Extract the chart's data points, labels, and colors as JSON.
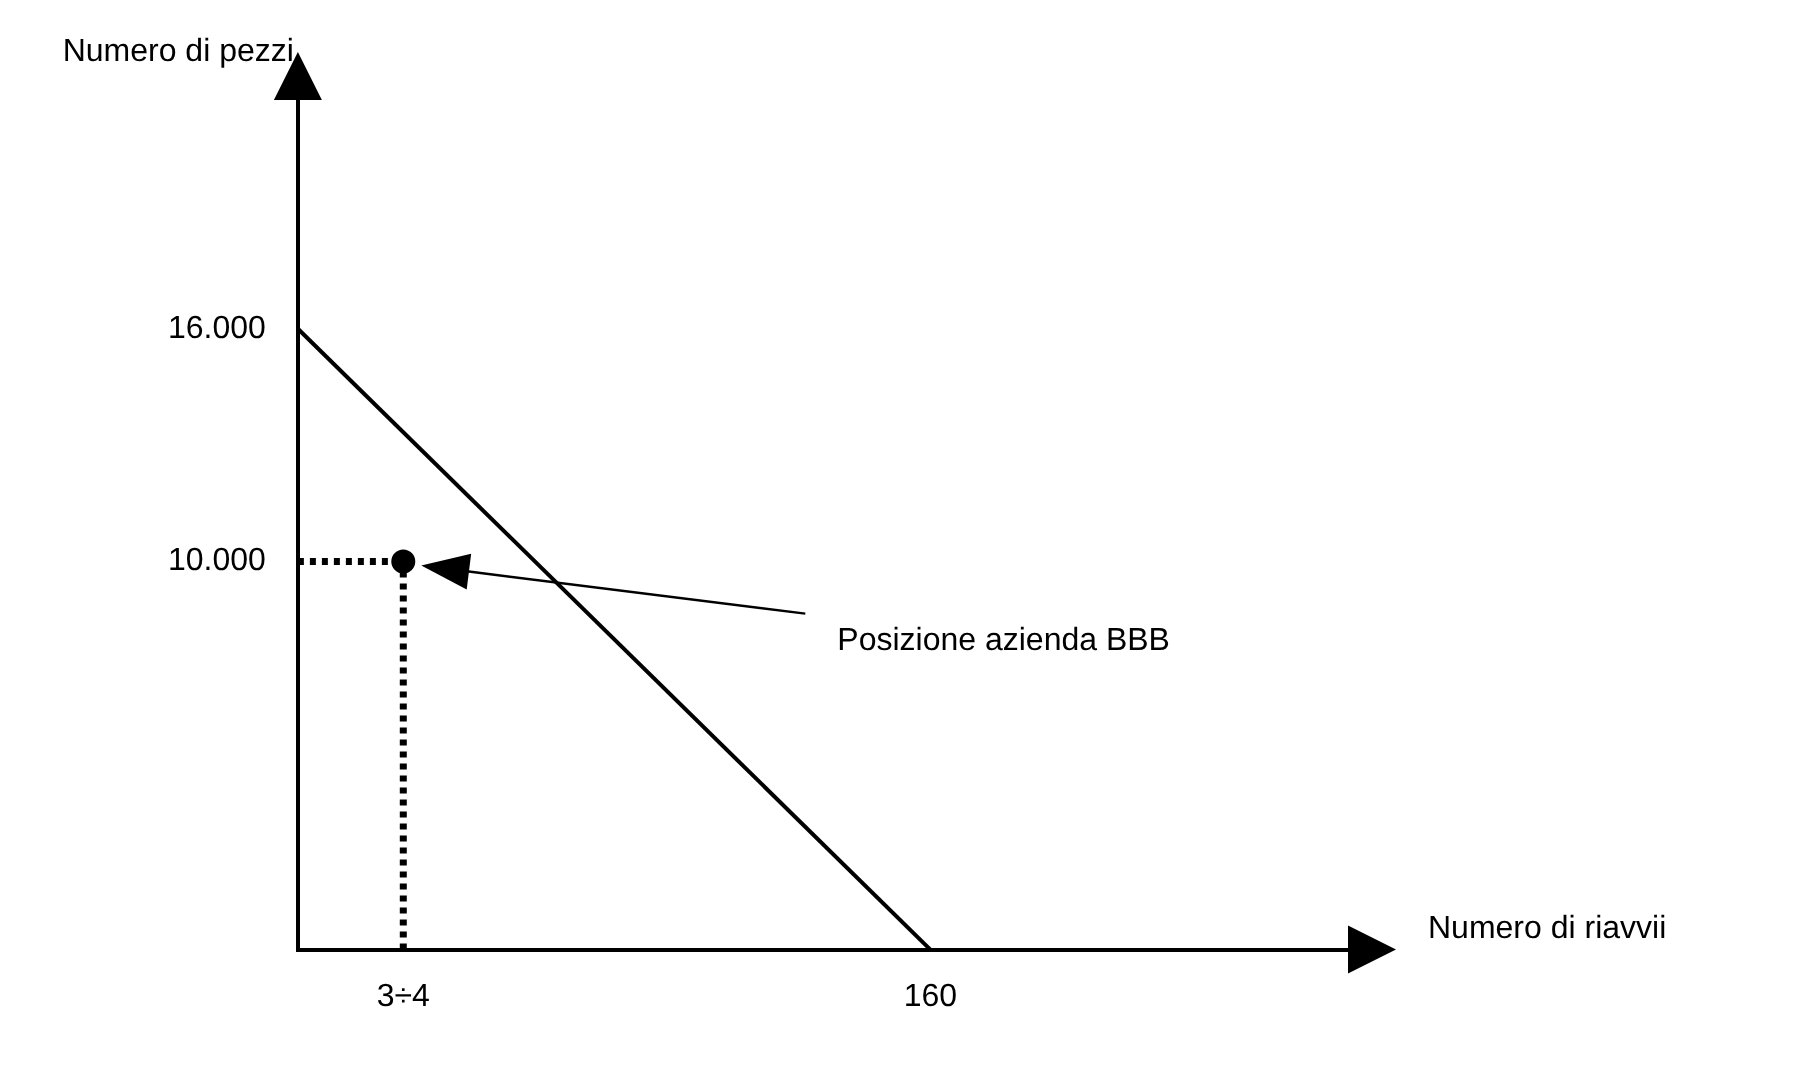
{
  "chart_data": {
    "type": "line",
    "xlabel": "Numero di riavvii",
    "ylabel": "Numero di pezzi",
    "categories": [
      null,
      "3÷4",
      null,
      null,
      null,
      null,
      "160",
      null,
      null,
      null,
      null
    ],
    "ylim": [
      0,
      22000
    ],
    "yticks": [
      {
        "value": 10000,
        "label": "10.000"
      },
      {
        "value": 16000,
        "label": "16.000"
      }
    ],
    "series": [
      {
        "values": [
          16000,
          null,
          null,
          null,
          null,
          null,
          0,
          null,
          null,
          null,
          null
        ],
        "color": "#000000",
        "marker": "none",
        "line_style": "solid"
      },
      {
        "values": [
          10000,
          10000,
          null,
          null,
          null,
          null,
          null,
          null,
          null,
          null,
          null
        ],
        "color": "#000000",
        "marker": "none",
        "line_style": "dotted"
      },
      {
        "type": "scatter",
        "values": [
          null,
          10000,
          null,
          null,
          null,
          null,
          null,
          null,
          null,
          null,
          null
        ],
        "color": "#000000",
        "marker": "circle"
      }
    ],
    "annotations": [
      "Posizione azienda BBB"
    ],
    "grid": false,
    "legend": false
  }
}
